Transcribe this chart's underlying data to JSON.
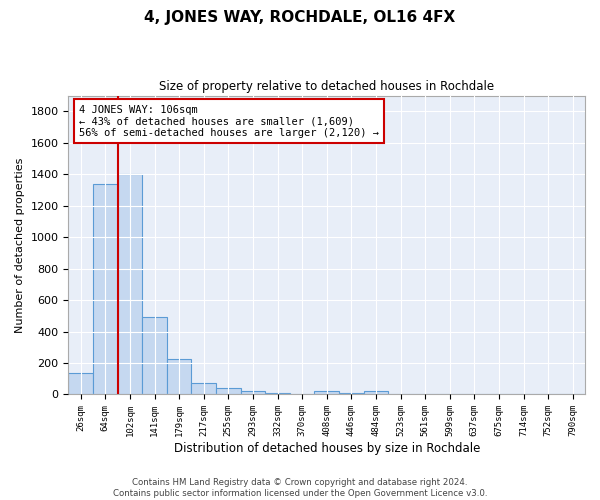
{
  "title": "4, JONES WAY, ROCHDALE, OL16 4FX",
  "subtitle": "Size of property relative to detached houses in Rochdale",
  "xlabel": "Distribution of detached houses by size in Rochdale",
  "ylabel": "Number of detached properties",
  "categories": [
    "26sqm",
    "64sqm",
    "102sqm",
    "141sqm",
    "179sqm",
    "217sqm",
    "255sqm",
    "293sqm",
    "332sqm",
    "370sqm",
    "408sqm",
    "446sqm",
    "484sqm",
    "523sqm",
    "561sqm",
    "599sqm",
    "637sqm",
    "675sqm",
    "714sqm",
    "752sqm",
    "790sqm"
  ],
  "values": [
    135,
    1340,
    1400,
    495,
    225,
    75,
    42,
    25,
    12,
    2,
    20,
    10,
    20,
    2,
    2,
    0,
    0,
    0,
    0,
    0,
    0
  ],
  "bar_color": "#c5d8f0",
  "bar_edge_color": "#5b9bd5",
  "highlight_index": 2,
  "vline_color": "#cc0000",
  "annotation_text": "4 JONES WAY: 106sqm\n← 43% of detached houses are smaller (1,609)\n56% of semi-detached houses are larger (2,120) →",
  "annotation_box_color": "#cc0000",
  "ylim": [
    0,
    1900
  ],
  "yticks": [
    0,
    200,
    400,
    600,
    800,
    1000,
    1200,
    1400,
    1600,
    1800
  ],
  "footer_line1": "Contains HM Land Registry data © Crown copyright and database right 2024.",
  "footer_line2": "Contains public sector information licensed under the Open Government Licence v3.0.",
  "plot_bg_color": "#e8eef8"
}
